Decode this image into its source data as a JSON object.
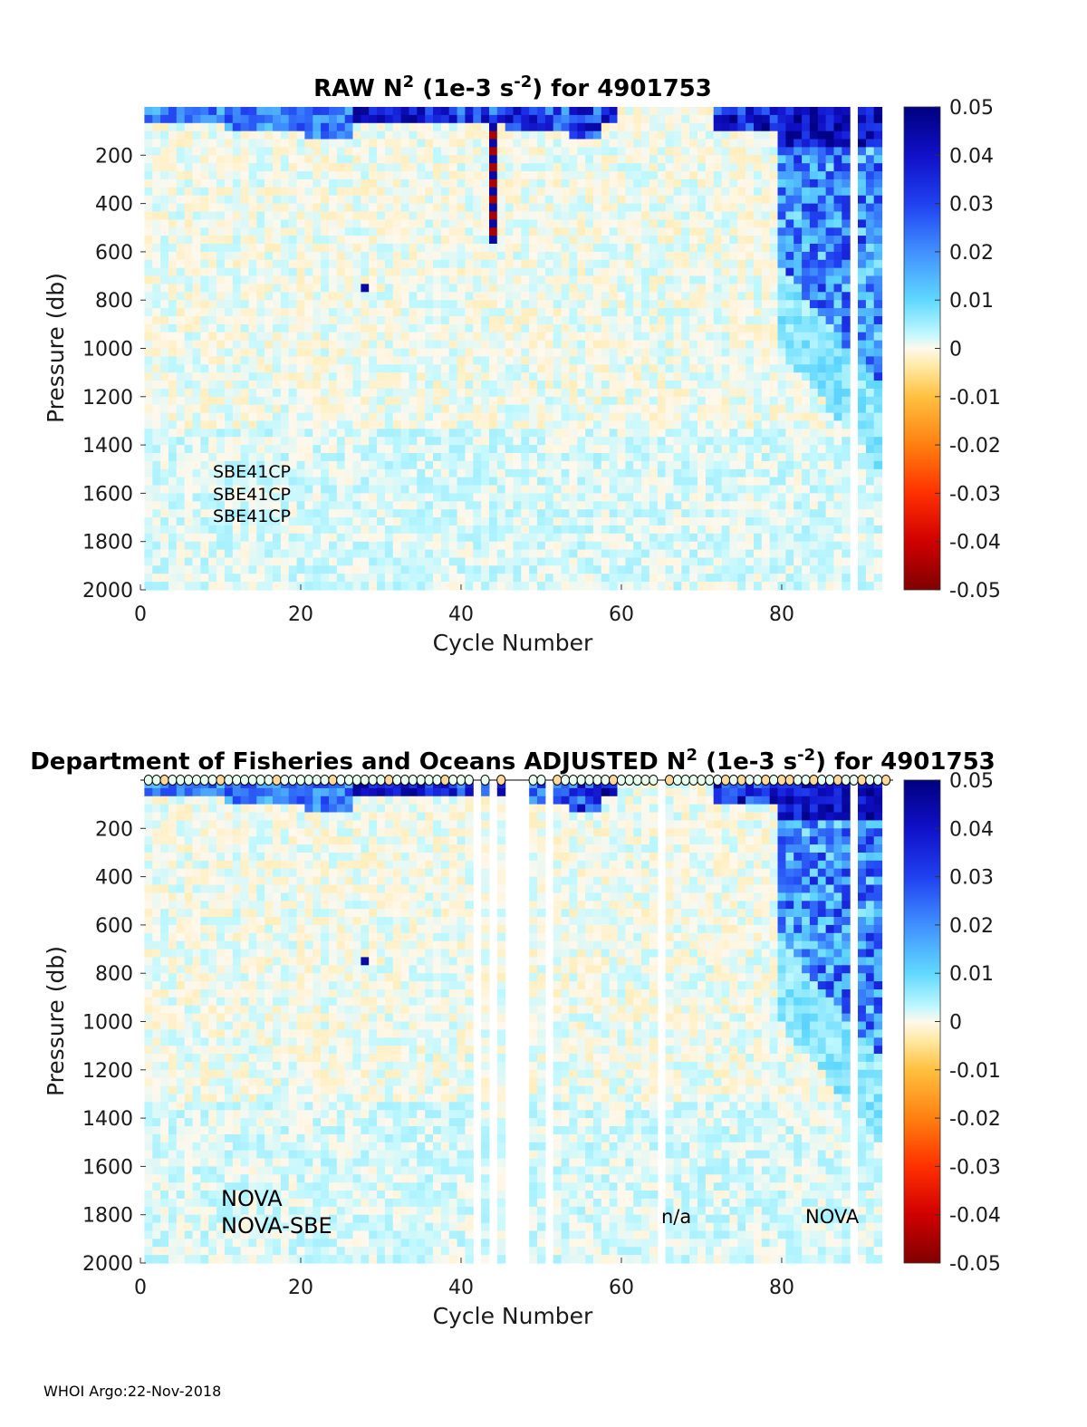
{
  "chart_data": [
    {
      "type": "heatmap",
      "title_prefix": "RAW N",
      "title_sup1": "2",
      "title_mid": " (1e-3 s",
      "title_sup2": "-2",
      "title_suffix": ") for 4901753",
      "xlabel": "Cycle Number",
      "ylabel": "Pressure (db)",
      "xlim": [
        0,
        93
      ],
      "ylim": [
        2000,
        0
      ],
      "xticks": [
        "0",
        "20",
        "40",
        "60",
        "80"
      ],
      "xtick_values": [
        0,
        20,
        40,
        60,
        80
      ],
      "yticks": [
        "200",
        "400",
        "600",
        "800",
        "1000",
        "1200",
        "1400",
        "1600",
        "1800",
        "2000"
      ],
      "ytick_values": [
        200,
        400,
        600,
        800,
        1000,
        1200,
        1400,
        1600,
        1800,
        2000
      ],
      "colorbar_ticks": [
        "0.05",
        "0.04",
        "0.03",
        "0.02",
        "0.01",
        "0",
        "-0.01",
        "-0.02",
        "-0.03",
        "-0.04",
        "-0.05"
      ],
      "clim": [
        -0.05,
        0.05
      ],
      "annotations": [
        "SBE41CP",
        "SBE41CP",
        "SBE41CP"
      ],
      "missing_cycles": [
        89
      ],
      "features": {
        "surface_mixed_layer_cycles": [
          1,
          26
        ],
        "deep_stratification_cycles": [
          80,
          92
        ],
        "strong_anomaly_cycle": 44
      }
    },
    {
      "type": "heatmap",
      "title_prefix": "Department of Fisheries and Oceans  ADJUSTED N",
      "title_sup1": "2",
      "title_mid": " (1e-3 s",
      "title_sup2": "-2",
      "title_suffix": ") for 4901753",
      "xlabel": "Cycle Number",
      "ylabel": "Pressure (db)",
      "xlim": [
        0,
        93
      ],
      "ylim": [
        2000,
        0
      ],
      "xticks": [
        "0",
        "20",
        "40",
        "60",
        "80"
      ],
      "xtick_values": [
        0,
        20,
        40,
        60,
        80
      ],
      "yticks": [
        "200",
        "400",
        "600",
        "800",
        "1000",
        "1200",
        "1400",
        "1600",
        "1800",
        "2000"
      ],
      "ytick_values": [
        200,
        400,
        600,
        800,
        1000,
        1200,
        1400,
        1600,
        1800,
        2000
      ],
      "colorbar_ticks": [
        "0.05",
        "0.04",
        "0.03",
        "0.02",
        "0.01",
        "0",
        "-0.01",
        "-0.02",
        "-0.03",
        "-0.04",
        "-0.05"
      ],
      "clim": [
        -0.05,
        0.05
      ],
      "annotations": [
        "NOVA",
        "NOVA-SBE",
        "n/a",
        "NOVA"
      ],
      "missing_cycles": [
        42,
        44,
        46,
        47,
        48,
        51,
        65,
        89
      ],
      "qc_marker_cycles": "1-93",
      "features": {
        "surface_mixed_layer_cycles": [
          1,
          26
        ],
        "deep_stratification_cycles": [
          80,
          92
        ]
      }
    }
  ],
  "footer": "WHOI Argo:22-Nov-2018",
  "colors": {
    "colormap": [
      "#800000",
      "#ff0000",
      "#ff8000",
      "#ffd040",
      "#fff5e0",
      "#f0faf0",
      "#80ffff",
      "#40a0ff",
      "#2020e0",
      "#000080"
    ],
    "background": "#ffffff"
  }
}
